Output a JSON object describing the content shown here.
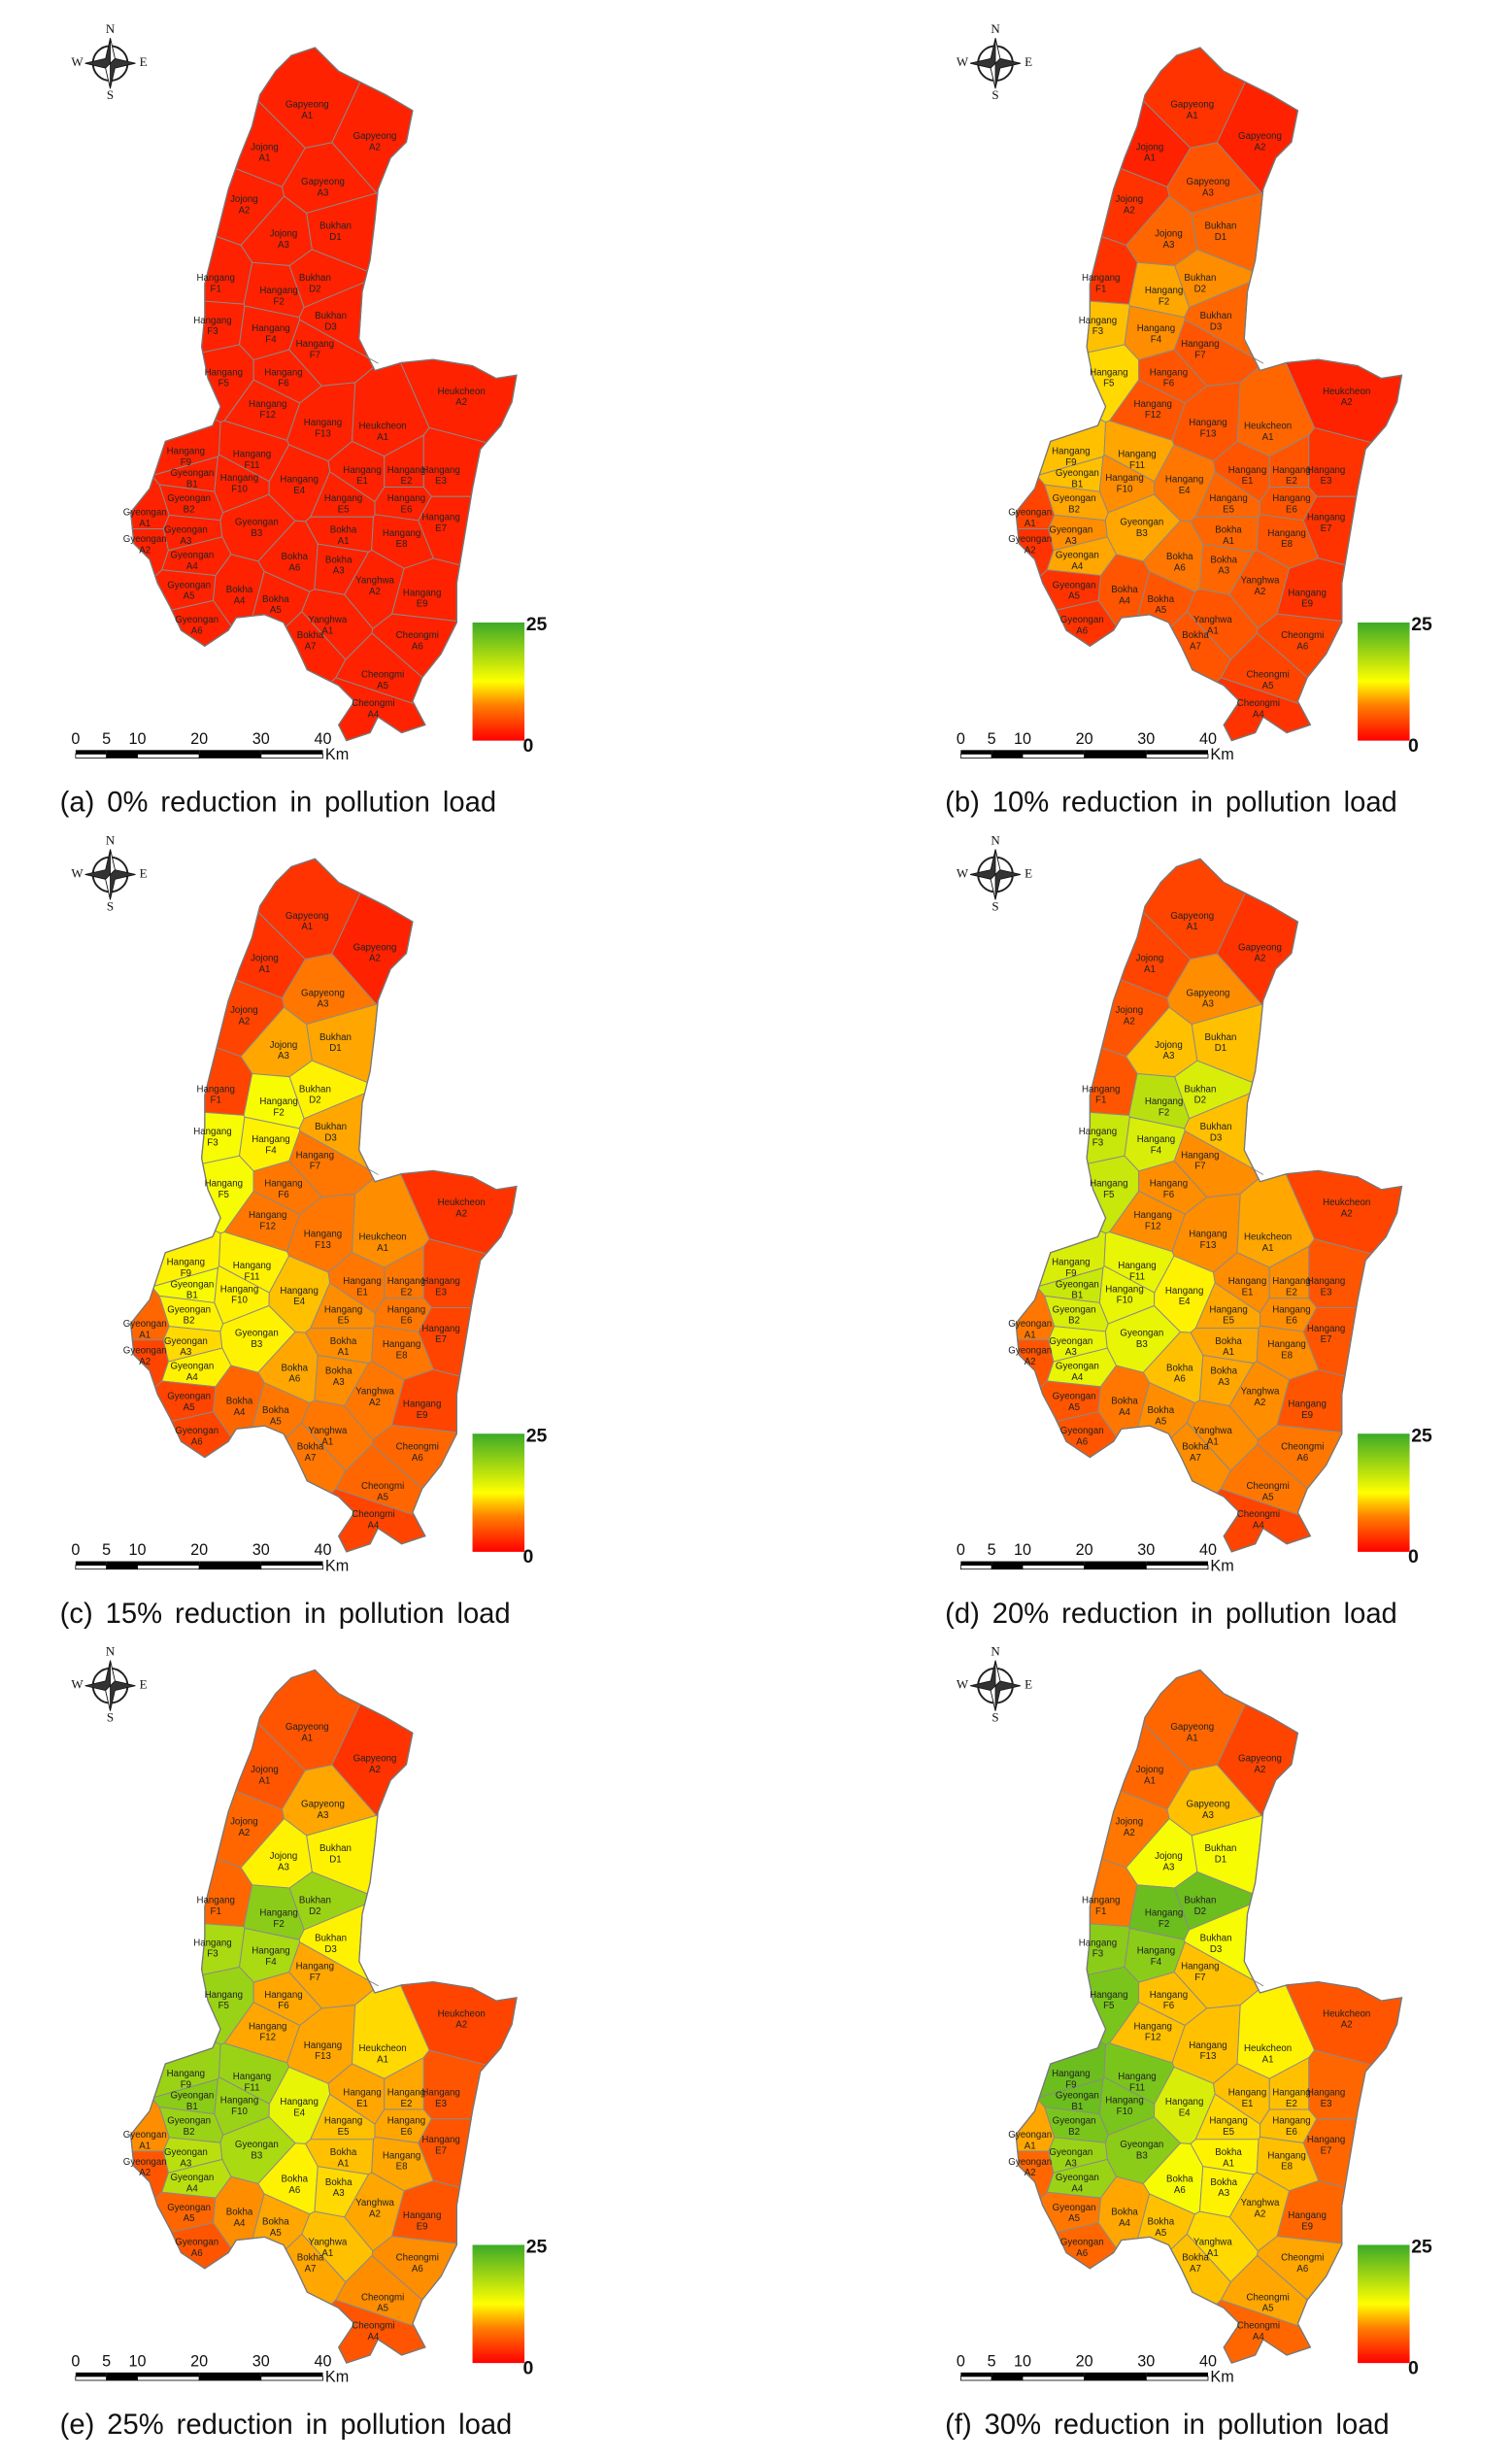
{
  "compass": {
    "north": "N",
    "south": "S",
    "west": "W",
    "east": "E"
  },
  "scale_bar": {
    "ticks": [
      0,
      5,
      10,
      20,
      30,
      40
    ],
    "unit": "Km"
  },
  "legend": {
    "min": 0,
    "max": 25
  },
  "regions": [
    [
      "Gapyeong",
      "A1"
    ],
    [
      "Gapyeong",
      "A2"
    ],
    [
      "Jojong",
      "A1"
    ],
    [
      "Jojong",
      "A2"
    ],
    [
      "Gapyeong",
      "A3"
    ],
    [
      "Bukhan",
      "D1"
    ],
    [
      "Jojong",
      "A3"
    ],
    [
      "Hangang",
      "F1"
    ],
    [
      "Bukhan",
      "D2"
    ],
    [
      "Hangang",
      "F2"
    ],
    [
      "Hangang",
      "F3"
    ],
    [
      "Hangang",
      "F4"
    ],
    [
      "Bukhan",
      "D3"
    ],
    [
      "Hangang",
      "F7"
    ],
    [
      "Hangang",
      "F5"
    ],
    [
      "Hangang",
      "F6"
    ],
    [
      "Hangang",
      "F12"
    ],
    [
      "Hangang",
      "F13"
    ],
    [
      "Heukcheon",
      "A1"
    ],
    [
      "Heukcheon",
      "A2"
    ],
    [
      "Hangang",
      "F9"
    ],
    [
      "Gyeongan",
      "B1"
    ],
    [
      "Hangang",
      "F11"
    ],
    [
      "Hangang",
      "F10"
    ],
    [
      "Hangang",
      "E4"
    ],
    [
      "Hangang",
      "E1"
    ],
    [
      "Hangang",
      "E2"
    ],
    [
      "Hangang",
      "E3"
    ],
    [
      "Gyeongan",
      "B2"
    ],
    [
      "Hangang",
      "E5"
    ],
    [
      "Hangang",
      "E6"
    ],
    [
      "Gyeongan",
      "A1"
    ],
    [
      "Gyeongan",
      "A3"
    ],
    [
      "Gyeongan",
      "B3"
    ],
    [
      "Bokha",
      "A1"
    ],
    [
      "Hangang",
      "E8"
    ],
    [
      "Hangang",
      "E7"
    ],
    [
      "Gyeongan",
      "A2"
    ],
    [
      "Gyeongan",
      "A4"
    ],
    [
      "Bokha",
      "A6"
    ],
    [
      "Bokha",
      "A3"
    ],
    [
      "Yanghwa",
      "A2"
    ],
    [
      "Gyeongan",
      "A5"
    ],
    [
      "Bokha",
      "A4"
    ],
    [
      "Bokha",
      "A5"
    ],
    [
      "Hangang",
      "E9"
    ],
    [
      "Yanghwa",
      "A1"
    ],
    [
      "Gyeongan",
      "A6"
    ],
    [
      "Bokha",
      "A7"
    ],
    [
      "Cheongmi",
      "A6"
    ],
    [
      "Cheongmi",
      "A5"
    ],
    [
      "Cheongmi",
      "A4"
    ]
  ],
  "panels": [
    {
      "caption": "(a) 0% reduction in pollution load",
      "values": [
        2,
        2,
        2,
        2,
        2,
        2,
        2,
        2,
        2,
        2,
        2,
        2,
        2,
        2,
        2,
        2,
        2,
        2,
        2,
        2,
        2,
        2,
        2,
        2,
        2,
        2,
        2,
        2,
        2,
        2,
        2,
        2,
        2,
        2,
        2,
        2,
        2,
        2,
        2,
        2,
        2,
        2,
        2,
        2,
        2,
        2,
        2,
        2,
        2,
        2,
        2,
        2
      ]
    },
    {
      "caption": "(b) 10% reduction in pollution load",
      "values": [
        3,
        2,
        2,
        3,
        5,
        6,
        6,
        3,
        8,
        9,
        10,
        8,
        6,
        5,
        11,
        5,
        5,
        5,
        6,
        2,
        10,
        10,
        9,
        8,
        7,
        5,
        5,
        3,
        9,
        6,
        5,
        4,
        8,
        9,
        6,
        5,
        3,
        3,
        9,
        7,
        6,
        5,
        3,
        5,
        5,
        3,
        5,
        3,
        5,
        4,
        4,
        3
      ]
    },
    {
      "caption": "(c) 15% reduction in pollution load",
      "values": [
        3,
        2,
        3,
        4,
        7,
        9,
        9,
        4,
        12,
        13,
        13,
        12,
        9,
        7,
        13,
        7,
        7,
        7,
        8,
        3,
        12,
        13,
        12,
        12,
        10,
        7,
        7,
        4,
        12,
        8,
        7,
        6,
        11,
        12,
        8,
        7,
        4,
        4,
        12,
        9,
        8,
        7,
        4,
        6,
        7,
        4,
        7,
        4,
        7,
        6,
        6,
        4
      ]
    },
    {
      "caption": "(d) 20% reduction in pollution load",
      "values": [
        4,
        3,
        4,
        5,
        8,
        10,
        10,
        5,
        15,
        17,
        16,
        15,
        10,
        8,
        16,
        8,
        8,
        8,
        9,
        4,
        15,
        16,
        14,
        14,
        12,
        8,
        8,
        5,
        15,
        9,
        8,
        7,
        14,
        14,
        9,
        8,
        5,
        5,
        14,
        10,
        9,
        8,
        5,
        7,
        8,
        5,
        8,
        5,
        8,
        7,
        7,
        4
      ]
    },
    {
      "caption": "(e) 25% reduction in pollution load",
      "values": [
        5,
        3,
        5,
        6,
        9,
        12,
        12,
        6,
        19,
        20,
        18,
        18,
        12,
        9,
        19,
        9,
        9,
        9,
        11,
        4,
        19,
        20,
        19,
        19,
        14,
        9,
        9,
        5,
        19,
        10,
        9,
        8,
        17,
        18,
        10,
        9,
        5,
        5,
        17,
        12,
        11,
        9,
        6,
        8,
        9,
        5,
        10,
        5,
        9,
        8,
        8,
        5
      ]
    },
    {
      "caption": "(f) 30% reduction in pollution load",
      "values": [
        6,
        4,
        6,
        7,
        10,
        13,
        13,
        7,
        22,
        22,
        20,
        20,
        13,
        10,
        21,
        10,
        10,
        10,
        12,
        5,
        22,
        22,
        21,
        21,
        15,
        10,
        10,
        6,
        21,
        11,
        10,
        9,
        19,
        20,
        12,
        10,
        6,
        6,
        19,
        13,
        12,
        10,
        7,
        9,
        10,
        6,
        11,
        6,
        10,
        9,
        9,
        6
      ]
    }
  ]
}
